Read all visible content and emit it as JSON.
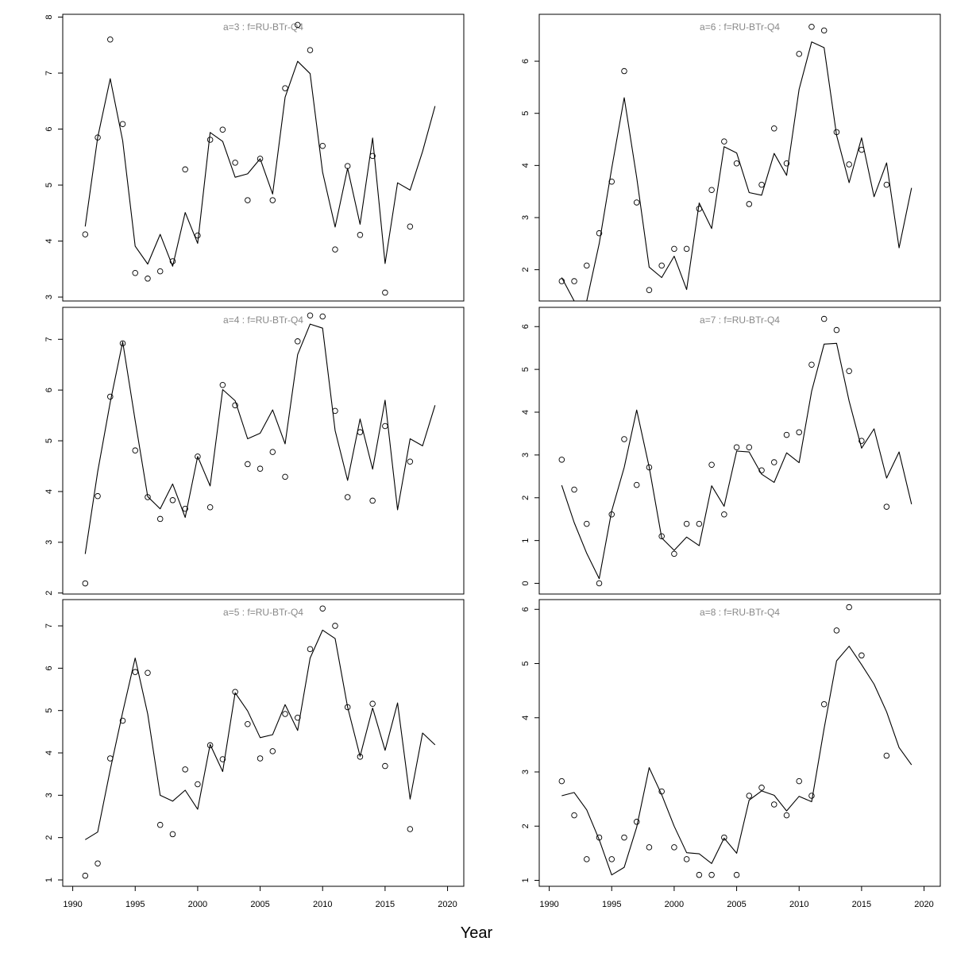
{
  "figure": {
    "xlabel": "Year"
  },
  "chart_data": [
    {
      "type": "line",
      "title": "a=3  :  f=RU-BTr-Q4",
      "xlim": [
        1989.2,
        2021.3
      ],
      "ylim": [
        2.93,
        8.05
      ],
      "yticks": [
        3,
        4,
        5,
        6,
        7,
        8
      ],
      "xticks": [],
      "series": [
        {
          "kind": "line",
          "x": [
            1991,
            1992,
            1993,
            1994,
            1995,
            1996,
            1997,
            1998,
            1999,
            2000,
            2001,
            2002,
            2003,
            2004,
            2005,
            2006,
            2007,
            2008,
            2009,
            2010,
            2011,
            2012,
            2013,
            2014,
            2015,
            2016,
            2017,
            2018,
            2019
          ],
          "y": [
            4.26,
            5.85,
            6.9,
            5.79,
            3.91,
            3.59,
            4.12,
            3.55,
            4.51,
            3.96,
            5.94,
            5.78,
            5.14,
            5.2,
            5.47,
            4.84,
            6.57,
            7.21,
            6.99,
            5.23,
            4.25,
            5.3,
            4.3,
            5.84,
            3.6,
            5.04,
            4.91,
            5.6,
            6.41
          ]
        },
        {
          "kind": "points",
          "x": [
            1991,
            1992,
            1993,
            1994,
            1995,
            1996,
            1997,
            1998,
            1999,
            2000,
            2001,
            2002,
            2003,
            2004,
            2005,
            2006,
            2007,
            2008,
            2009,
            2010,
            2011,
            2012,
            2013,
            2014,
            2015,
            2017
          ],
          "y": [
            4.12,
            5.85,
            7.6,
            6.09,
            3.43,
            3.33,
            3.46,
            3.64,
            5.28,
            4.1,
            5.81,
            5.99,
            5.4,
            4.73,
            5.47,
            4.73,
            6.73,
            7.86,
            7.41,
            5.7,
            3.85,
            5.34,
            4.11,
            5.52,
            3.08,
            4.26
          ]
        }
      ]
    },
    {
      "type": "line",
      "title": "a=6  :  f=RU-BTr-Q4",
      "xlim": [
        1989.2,
        2021.3
      ],
      "ylim": [
        1.4,
        6.9
      ],
      "yticks": [
        2,
        3,
        4,
        5,
        6
      ],
      "xticks": [],
      "series": [
        {
          "kind": "line",
          "x": [
            1991,
            1992,
            1993,
            1994,
            1995,
            1996,
            1997,
            1998,
            1999,
            2000,
            2001,
            2002,
            2003,
            2004,
            2005,
            2006,
            2007,
            2008,
            2009,
            2010,
            2011,
            2012,
            2013,
            2014,
            2015,
            2016,
            2017,
            2018,
            2019
          ],
          "y": [
            1.85,
            1.4,
            1.4,
            2.5,
            3.94,
            5.3,
            3.77,
            2.05,
            1.85,
            2.26,
            1.62,
            3.28,
            2.79,
            4.36,
            4.24,
            3.48,
            3.43,
            4.23,
            3.81,
            5.46,
            6.37,
            6.26,
            4.58,
            3.67,
            4.53,
            3.4,
            4.05,
            2.42,
            3.57
          ]
        },
        {
          "kind": "points",
          "x": [
            1991,
            1992,
            1993,
            1994,
            1995,
            1996,
            1997,
            1998,
            1999,
            2000,
            2001,
            2002,
            2003,
            2004,
            2005,
            2006,
            2007,
            2008,
            2009,
            2010,
            2011,
            2012,
            2013,
            2014,
            2015,
            2017
          ],
          "y": [
            1.78,
            1.78,
            2.08,
            2.7,
            3.69,
            5.81,
            3.29,
            1.61,
            2.08,
            2.4,
            2.4,
            3.17,
            3.53,
            4.46,
            4.04,
            3.26,
            3.63,
            4.71,
            4.04,
            6.14,
            6.66,
            6.59,
            4.64,
            4.02,
            4.3,
            3.63
          ]
        }
      ]
    },
    {
      "type": "line",
      "title": "a=4  :  f=RU-BTr-Q4",
      "xlim": [
        1989.2,
        2021.3
      ],
      "ylim": [
        1.98,
        7.63
      ],
      "yticks": [
        2,
        3,
        4,
        5,
        6,
        7
      ],
      "xticks": [],
      "series": [
        {
          "kind": "line",
          "x": [
            1991,
            1992,
            1993,
            1994,
            1995,
            1996,
            1997,
            1998,
            1999,
            2000,
            2001,
            2002,
            2003,
            2004,
            2005,
            2006,
            2007,
            2008,
            2009,
            2010,
            2011,
            2012,
            2013,
            2014,
            2015,
            2016,
            2017,
            2018,
            2019
          ],
          "y": [
            2.77,
            4.39,
            5.76,
            6.95,
            5.4,
            3.9,
            3.66,
            4.15,
            3.49,
            4.69,
            4.11,
            6.01,
            5.79,
            5.04,
            5.15,
            5.61,
            4.94,
            6.7,
            7.3,
            7.22,
            5.2,
            4.22,
            5.43,
            4.44,
            5.8,
            3.64,
            5.04,
            4.9,
            5.7
          ]
        },
        {
          "kind": "points",
          "x": [
            1991,
            1992,
            1993,
            1994,
            1995,
            1996,
            1997,
            1998,
            1999,
            2000,
            2001,
            2002,
            2003,
            2004,
            2005,
            2006,
            2007,
            2008,
            2009,
            2010,
            2011,
            2012,
            2013,
            2014,
            2015,
            2017
          ],
          "y": [
            2.19,
            3.91,
            5.87,
            6.92,
            4.81,
            3.89,
            3.46,
            3.83,
            3.66,
            4.69,
            3.69,
            6.1,
            5.7,
            4.54,
            4.45,
            4.78,
            4.29,
            6.96,
            7.47,
            7.45,
            5.59,
            3.89,
            5.17,
            3.82,
            5.29,
            4.59
          ]
        }
      ]
    },
    {
      "type": "line",
      "title": "a=7  :  f=RU-BTr-Q4",
      "xlim": [
        1989.2,
        2021.3
      ],
      "ylim": [
        -0.25,
        6.45
      ],
      "yticks": [
        0,
        1,
        2,
        3,
        4,
        5,
        6
      ],
      "xticks": [],
      "series": [
        {
          "kind": "line",
          "x": [
            1991,
            1992,
            1993,
            1994,
            1995,
            1996,
            1997,
            1998,
            1999,
            2000,
            2001,
            2002,
            2003,
            2004,
            2005,
            2006,
            2007,
            2008,
            2009,
            2010,
            2011,
            2012,
            2013,
            2014,
            2015,
            2016,
            2017,
            2018,
            2019
          ],
          "y": [
            2.29,
            1.42,
            0.7,
            0.11,
            1.69,
            2.71,
            4.05,
            2.72,
            1.06,
            0.77,
            1.08,
            0.88,
            2.28,
            1.8,
            3.09,
            3.07,
            2.55,
            2.36,
            3.05,
            2.82,
            4.49,
            5.59,
            5.61,
            4.26,
            3.16,
            3.61,
            2.46,
            3.07,
            1.85
          ]
        },
        {
          "kind": "points",
          "x": [
            1991,
            1992,
            1993,
            1994,
            1995,
            1996,
            1997,
            1998,
            1999,
            2000,
            2001,
            2002,
            2003,
            2004,
            2005,
            2006,
            2007,
            2008,
            2009,
            2010,
            2011,
            2012,
            2013,
            2014,
            2015,
            2017
          ],
          "y": [
            2.89,
            2.19,
            1.39,
            0.0,
            1.61,
            3.37,
            2.3,
            2.71,
            1.1,
            0.69,
            1.39,
            1.39,
            2.77,
            1.61,
            3.18,
            3.18,
            2.64,
            2.83,
            3.47,
            3.53,
            5.11,
            6.18,
            5.92,
            4.96,
            3.33,
            1.79
          ]
        }
      ]
    },
    {
      "type": "line",
      "title": "a=5  :  f=RU-BTr-Q4",
      "xlim": [
        1989.2,
        2021.3
      ],
      "ylim": [
        0.85,
        7.62
      ],
      "yticks": [
        1,
        2,
        3,
        4,
        5,
        6,
        7
      ],
      "xticks": [
        1990,
        1995,
        2000,
        2005,
        2010,
        2015,
        2020
      ],
      "series": [
        {
          "kind": "line",
          "x": [
            1991,
            1992,
            1993,
            1994,
            1995,
            1996,
            1997,
            1998,
            1999,
            2000,
            2001,
            2002,
            2003,
            2004,
            2005,
            2006,
            2007,
            2008,
            2009,
            2010,
            2011,
            2012,
            2013,
            2014,
            2015,
            2016,
            2017,
            2018,
            2019
          ],
          "y": [
            1.95,
            2.13,
            3.6,
            4.96,
            6.24,
            4.92,
            3.0,
            2.86,
            3.12,
            2.67,
            4.2,
            3.56,
            5.42,
            4.99,
            4.36,
            4.43,
            5.14,
            4.53,
            6.24,
            6.9,
            6.7,
            5.08,
            3.92,
            5.06,
            4.06,
            5.18,
            2.91,
            4.47,
            4.19
          ]
        },
        {
          "kind": "points",
          "x": [
            1991,
            1992,
            1993,
            1994,
            1995,
            1996,
            1997,
            1998,
            1999,
            2000,
            2001,
            2002,
            2003,
            2004,
            2005,
            2006,
            2007,
            2008,
            2009,
            2010,
            2011,
            2012,
            2013,
            2014,
            2015,
            2017
          ],
          "y": [
            1.1,
            1.39,
            3.87,
            4.76,
            5.91,
            5.89,
            2.3,
            2.08,
            3.61,
            3.26,
            4.18,
            3.85,
            5.44,
            4.68,
            3.87,
            4.04,
            4.92,
            4.83,
            6.45,
            7.41,
            7.0,
            5.08,
            3.91,
            5.16,
            3.69,
            2.2
          ]
        }
      ]
    },
    {
      "type": "line",
      "title": "a=8  :  f=RU-BTr-Q4",
      "xlim": [
        1989.2,
        2021.3
      ],
      "ylim": [
        0.89,
        6.18
      ],
      "yticks": [
        1,
        2,
        3,
        4,
        5,
        6
      ],
      "xticks": [
        1990,
        1995,
        2000,
        2005,
        2010,
        2015,
        2020
      ],
      "series": [
        {
          "kind": "line",
          "x": [
            1991,
            1992,
            1993,
            1994,
            1995,
            1996,
            1997,
            1998,
            1999,
            2000,
            2001,
            2002,
            2003,
            2004,
            2005,
            2006,
            2007,
            2008,
            2009,
            2010,
            2011,
            2012,
            2013,
            2014,
            2015,
            2016,
            2017,
            2018,
            2019
          ],
          "y": [
            2.56,
            2.62,
            2.3,
            1.75,
            1.1,
            1.24,
            1.98,
            3.08,
            2.58,
            2.0,
            1.51,
            1.49,
            1.31,
            1.78,
            1.5,
            2.48,
            2.65,
            2.57,
            2.28,
            2.55,
            2.45,
            3.8,
            5.05,
            5.32,
            4.98,
            4.62,
            4.11,
            3.45,
            3.13
          ]
        },
        {
          "kind": "points",
          "x": [
            1991,
            1992,
            1993,
            1994,
            1995,
            1996,
            1997,
            1998,
            1999,
            2000,
            2001,
            2002,
            2003,
            2004,
            2005,
            2006,
            2007,
            2008,
            2009,
            2010,
            2011,
            2012,
            2013,
            2014,
            2015,
            2017
          ],
          "y": [
            2.83,
            2.2,
            1.39,
            1.79,
            1.39,
            1.79,
            2.08,
            1.61,
            2.64,
            1.61,
            1.39,
            1.1,
            1.1,
            1.79,
            1.1,
            2.56,
            2.71,
            2.4,
            2.2,
            2.83,
            2.56,
            4.25,
            5.61,
            6.04,
            5.15,
            3.3
          ]
        }
      ]
    }
  ]
}
